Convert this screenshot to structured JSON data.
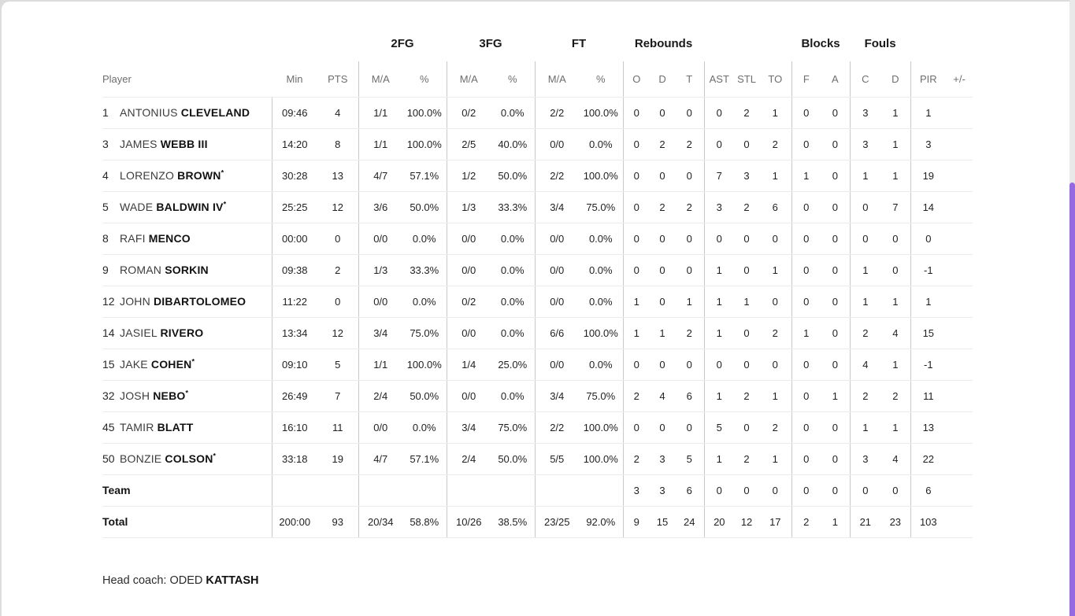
{
  "colors": {
    "scrollbar_thumb": "#9569e1",
    "scrollbar_track": "#e9e9e9",
    "divider": "#c9c9c9",
    "row_line": "#ececec"
  },
  "table": {
    "groups": {
      "fg2": "2FG",
      "fg3": "3FG",
      "ft": "FT",
      "rebounds": "Rebounds",
      "blocks": "Blocks",
      "fouls": "Fouls"
    },
    "sub_headers": [
      "Player",
      "Min",
      "PTS",
      "M/A",
      "%",
      "M/A",
      "%",
      "M/A",
      "%",
      "O",
      "D",
      "T",
      "AST",
      "STL",
      "TO",
      "F",
      "A",
      "C",
      "D",
      "PIR",
      "+/-"
    ],
    "col_keys": [
      "min",
      "pts",
      "fg2",
      "fg2p",
      "fg3",
      "fg3p",
      "ft",
      "ftp",
      "ro",
      "rd",
      "rt",
      "ast",
      "stl",
      "to",
      "bf",
      "ba",
      "fc",
      "fd",
      "pir",
      "pm"
    ],
    "divider_after": [
      "pts",
      "fg2p",
      "fg3p",
      "ftp",
      "rt",
      "to",
      "ba",
      "fd"
    ],
    "rows": [
      {
        "num": "1",
        "first": "ANTONIUS",
        "last": "CLEVELAND",
        "starter": false,
        "min": "09:46",
        "pts": "4",
        "fg2": "1/1",
        "fg2p": "100.0%",
        "fg3": "0/2",
        "fg3p": "0.0%",
        "ft": "2/2",
        "ftp": "100.0%",
        "ro": "0",
        "rd": "0",
        "rt": "0",
        "ast": "0",
        "stl": "2",
        "to": "1",
        "bf": "0",
        "ba": "0",
        "fc": "3",
        "fd": "1",
        "pir": "1",
        "pm": ""
      },
      {
        "num": "3",
        "first": "JAMES",
        "last": "WEBB III",
        "starter": false,
        "min": "14:20",
        "pts": "8",
        "fg2": "1/1",
        "fg2p": "100.0%",
        "fg3": "2/5",
        "fg3p": "40.0%",
        "ft": "0/0",
        "ftp": "0.0%",
        "ro": "0",
        "rd": "2",
        "rt": "2",
        "ast": "0",
        "stl": "0",
        "to": "2",
        "bf": "0",
        "ba": "0",
        "fc": "3",
        "fd": "1",
        "pir": "3",
        "pm": ""
      },
      {
        "num": "4",
        "first": "LORENZO",
        "last": "BROWN",
        "starter": true,
        "min": "30:28",
        "pts": "13",
        "fg2": "4/7",
        "fg2p": "57.1%",
        "fg3": "1/2",
        "fg3p": "50.0%",
        "ft": "2/2",
        "ftp": "100.0%",
        "ro": "0",
        "rd": "0",
        "rt": "0",
        "ast": "7",
        "stl": "3",
        "to": "1",
        "bf": "1",
        "ba": "0",
        "fc": "1",
        "fd": "1",
        "pir": "19",
        "pm": ""
      },
      {
        "num": "5",
        "first": "WADE",
        "last": "BALDWIN IV",
        "starter": true,
        "min": "25:25",
        "pts": "12",
        "fg2": "3/6",
        "fg2p": "50.0%",
        "fg3": "1/3",
        "fg3p": "33.3%",
        "ft": "3/4",
        "ftp": "75.0%",
        "ro": "0",
        "rd": "2",
        "rt": "2",
        "ast": "3",
        "stl": "2",
        "to": "6",
        "bf": "0",
        "ba": "0",
        "fc": "0",
        "fd": "7",
        "pir": "14",
        "pm": ""
      },
      {
        "num": "8",
        "first": "RAFI",
        "last": "MENCO",
        "starter": false,
        "min": "00:00",
        "pts": "0",
        "fg2": "0/0",
        "fg2p": "0.0%",
        "fg3": "0/0",
        "fg3p": "0.0%",
        "ft": "0/0",
        "ftp": "0.0%",
        "ro": "0",
        "rd": "0",
        "rt": "0",
        "ast": "0",
        "stl": "0",
        "to": "0",
        "bf": "0",
        "ba": "0",
        "fc": "0",
        "fd": "0",
        "pir": "0",
        "pm": ""
      },
      {
        "num": "9",
        "first": "ROMAN",
        "last": "SORKIN",
        "starter": false,
        "min": "09:38",
        "pts": "2",
        "fg2": "1/3",
        "fg2p": "33.3%",
        "fg3": "0/0",
        "fg3p": "0.0%",
        "ft": "0/0",
        "ftp": "0.0%",
        "ro": "0",
        "rd": "0",
        "rt": "0",
        "ast": "1",
        "stl": "0",
        "to": "1",
        "bf": "0",
        "ba": "0",
        "fc": "1",
        "fd": "0",
        "pir": "-1",
        "pm": ""
      },
      {
        "num": "12",
        "first": "JOHN",
        "last": "DIBARTOLOMEO",
        "starter": false,
        "min": "11:22",
        "pts": "0",
        "fg2": "0/0",
        "fg2p": "0.0%",
        "fg3": "0/2",
        "fg3p": "0.0%",
        "ft": "0/0",
        "ftp": "0.0%",
        "ro": "1",
        "rd": "0",
        "rt": "1",
        "ast": "1",
        "stl": "1",
        "to": "0",
        "bf": "0",
        "ba": "0",
        "fc": "1",
        "fd": "1",
        "pir": "1",
        "pm": ""
      },
      {
        "num": "14",
        "first": "JASIEL",
        "last": "RIVERO",
        "starter": false,
        "min": "13:34",
        "pts": "12",
        "fg2": "3/4",
        "fg2p": "75.0%",
        "fg3": "0/0",
        "fg3p": "0.0%",
        "ft": "6/6",
        "ftp": "100.0%",
        "ro": "1",
        "rd": "1",
        "rt": "2",
        "ast": "1",
        "stl": "0",
        "to": "2",
        "bf": "1",
        "ba": "0",
        "fc": "2",
        "fd": "4",
        "pir": "15",
        "pm": ""
      },
      {
        "num": "15",
        "first": "JAKE",
        "last": "COHEN",
        "starter": true,
        "min": "09:10",
        "pts": "5",
        "fg2": "1/1",
        "fg2p": "100.0%",
        "fg3": "1/4",
        "fg3p": "25.0%",
        "ft": "0/0",
        "ftp": "0.0%",
        "ro": "0",
        "rd": "0",
        "rt": "0",
        "ast": "0",
        "stl": "0",
        "to": "0",
        "bf": "0",
        "ba": "0",
        "fc": "4",
        "fd": "1",
        "pir": "-1",
        "pm": ""
      },
      {
        "num": "32",
        "first": "JOSH",
        "last": "NEBO",
        "starter": true,
        "min": "26:49",
        "pts": "7",
        "fg2": "2/4",
        "fg2p": "50.0%",
        "fg3": "0/0",
        "fg3p": "0.0%",
        "ft": "3/4",
        "ftp": "75.0%",
        "ro": "2",
        "rd": "4",
        "rt": "6",
        "ast": "1",
        "stl": "2",
        "to": "1",
        "bf": "0",
        "ba": "1",
        "fc": "2",
        "fd": "2",
        "pir": "11",
        "pm": ""
      },
      {
        "num": "45",
        "first": "TAMIR",
        "last": "BLATT",
        "starter": false,
        "min": "16:10",
        "pts": "11",
        "fg2": "0/0",
        "fg2p": "0.0%",
        "fg3": "3/4",
        "fg3p": "75.0%",
        "ft": "2/2",
        "ftp": "100.0%",
        "ro": "0",
        "rd": "0",
        "rt": "0",
        "ast": "5",
        "stl": "0",
        "to": "2",
        "bf": "0",
        "ba": "0",
        "fc": "1",
        "fd": "1",
        "pir": "13",
        "pm": ""
      },
      {
        "num": "50",
        "first": "BONZIE",
        "last": "COLSON",
        "starter": true,
        "min": "33:18",
        "pts": "19",
        "fg2": "4/7",
        "fg2p": "57.1%",
        "fg3": "2/4",
        "fg3p": "50.0%",
        "ft": "5/5",
        "ftp": "100.0%",
        "ro": "2",
        "rd": "3",
        "rt": "5",
        "ast": "1",
        "stl": "2",
        "to": "1",
        "bf": "0",
        "ba": "0",
        "fc": "3",
        "fd": "4",
        "pir": "22",
        "pm": ""
      }
    ],
    "team_row": {
      "label": "Team",
      "min": "",
      "pts": "",
      "fg2": "",
      "fg2p": "",
      "fg3": "",
      "fg3p": "",
      "ft": "",
      "ftp": "",
      "ro": "3",
      "rd": "3",
      "rt": "6",
      "ast": "0",
      "stl": "0",
      "to": "0",
      "bf": "0",
      "ba": "0",
      "fc": "0",
      "fd": "0",
      "pir": "6",
      "pm": ""
    },
    "total_row": {
      "label": "Total",
      "min": "200:00",
      "pts": "93",
      "fg2": "20/34",
      "fg2p": "58.8%",
      "fg3": "10/26",
      "fg3p": "38.5%",
      "ft": "23/25",
      "ftp": "92.0%",
      "ro": "9",
      "rd": "15",
      "rt": "24",
      "ast": "20",
      "stl": "12",
      "to": "17",
      "bf": "2",
      "ba": "1",
      "fc": "21",
      "fd": "23",
      "pir": "103",
      "pm": ""
    }
  },
  "footer": {
    "head_coach_label": "Head coach:",
    "coach_first": "ODED",
    "coach_last": "KATTASH"
  }
}
